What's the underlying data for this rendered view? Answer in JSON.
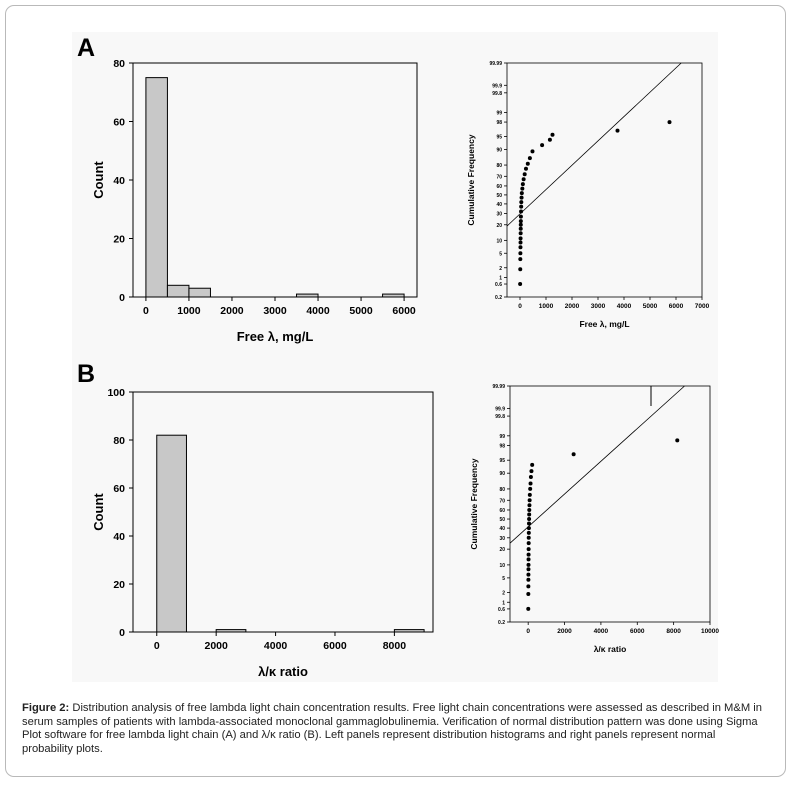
{
  "figure": {
    "panel_a_letter": "A",
    "panel_b_letter": "B",
    "caption_label": "Figure 2:",
    "caption_text": " Distribution analysis of free lambda light chain concentration results. Free light chain concentrations were assessed as described in M&M in serum samples of patients with lambda-associated monoclonal gammaglobulinemia. Verification of normal distribution pattern was done using Sigma Plot software for free lambda light chain (A) and λ/κ ratio (B). Left panels represent distribution histograms and right panels represent normal probability plots."
  },
  "colors": {
    "bar_fill": "#c8c8c8",
    "bar_stroke": "#000000",
    "point": "#000000",
    "background": "#f8f8f8"
  },
  "chart_data": [
    {
      "id": "A-hist",
      "type": "bar",
      "xlabel": "Free λ, mg/L",
      "ylabel": "Count",
      "xlim": [
        -300,
        6300
      ],
      "ylim": [
        0,
        80
      ],
      "xticks": [
        "0",
        "1000",
        "2000",
        "3000",
        "4000",
        "5000",
        "6000"
      ],
      "xtick_values": [
        0,
        1000,
        2000,
        3000,
        4000,
        5000,
        6000
      ],
      "yticks": [
        "0",
        "20",
        "40",
        "60",
        "80"
      ],
      "ytick_values": [
        0,
        20,
        40,
        60,
        80
      ],
      "bins": [
        {
          "start": 0,
          "end": 500,
          "value": 75
        },
        {
          "start": 500,
          "end": 1000,
          "value": 4
        },
        {
          "start": 1000,
          "end": 1500,
          "value": 3
        },
        {
          "start": 3500,
          "end": 4000,
          "value": 1
        },
        {
          "start": 5500,
          "end": 6000,
          "value": 1
        }
      ]
    },
    {
      "id": "A-prob",
      "type": "scatter",
      "xlabel": "Free λ, mg/L",
      "ylabel": "Cumulative Frequency",
      "xlim": [
        -500,
        7000
      ],
      "xticks": [
        "0",
        "1000",
        "2000",
        "3000",
        "4000",
        "5000",
        "6000",
        "7000"
      ],
      "xtick_values": [
        0,
        1000,
        2000,
        3000,
        4000,
        5000,
        6000,
        7000
      ],
      "yticks": [
        "0.2",
        "0.6",
        "1",
        "2",
        "5",
        "10",
        "20",
        "30",
        "40",
        "50",
        "60",
        "70",
        "80",
        "90",
        "95",
        "98",
        "99",
        "99.8",
        "99.9",
        "99.99"
      ],
      "ytick_values": [
        0.2,
        0.6,
        1,
        2,
        5,
        10,
        20,
        30,
        40,
        50,
        60,
        70,
        80,
        90,
        95,
        98,
        99,
        99.8,
        99.9,
        99.99
      ],
      "ylim": [
        0.2,
        99.99
      ],
      "fit_line": {
        "x": [
          -500,
          6200
        ],
        "y": [
          19,
          99.99
        ]
      },
      "points": [
        {
          "x": 5,
          "y": 0.6
        },
        {
          "x": 10,
          "y": 1.8
        },
        {
          "x": 12,
          "y": 3.5
        },
        {
          "x": 15,
          "y": 5
        },
        {
          "x": 18,
          "y": 7
        },
        {
          "x": 20,
          "y": 9
        },
        {
          "x": 22,
          "y": 11
        },
        {
          "x": 25,
          "y": 14
        },
        {
          "x": 28,
          "y": 17
        },
        {
          "x": 30,
          "y": 20
        },
        {
          "x": 32,
          "y": 23
        },
        {
          "x": 35,
          "y": 27
        },
        {
          "x": 40,
          "y": 32
        },
        {
          "x": 45,
          "y": 37
        },
        {
          "x": 50,
          "y": 42
        },
        {
          "x": 60,
          "y": 47
        },
        {
          "x": 70,
          "y": 52
        },
        {
          "x": 90,
          "y": 57
        },
        {
          "x": 110,
          "y": 62
        },
        {
          "x": 140,
          "y": 67
        },
        {
          "x": 180,
          "y": 72
        },
        {
          "x": 230,
          "y": 77
        },
        {
          "x": 300,
          "y": 81
        },
        {
          "x": 380,
          "y": 85
        },
        {
          "x": 480,
          "y": 89
        },
        {
          "x": 850,
          "y": 92
        },
        {
          "x": 1150,
          "y": 94
        },
        {
          "x": 1250,
          "y": 95.5
        },
        {
          "x": 3750,
          "y": 96.5
        },
        {
          "x": 5750,
          "y": 98
        }
      ]
    },
    {
      "id": "B-hist",
      "type": "bar",
      "xlabel": "λ/κ ratio",
      "ylabel": "Count",
      "xlim": [
        -800,
        9300
      ],
      "ylim": [
        0,
        100
      ],
      "xticks": [
        "0",
        "2000",
        "4000",
        "6000",
        "8000"
      ],
      "xtick_values": [
        0,
        2000,
        4000,
        6000,
        8000
      ],
      "yticks": [
        "0",
        "20",
        "40",
        "60",
        "80",
        "100"
      ],
      "ytick_values": [
        0,
        20,
        40,
        60,
        80,
        100
      ],
      "bins": [
        {
          "start": 0,
          "end": 1000,
          "value": 82
        },
        {
          "start": 2000,
          "end": 3000,
          "value": 1
        },
        {
          "start": 8000,
          "end": 9000,
          "value": 1
        }
      ]
    },
    {
      "id": "B-prob",
      "type": "scatter",
      "xlabel": "λ/κ ratio",
      "ylabel": "Cumulative Frequency",
      "xlim": [
        -1000,
        10000
      ],
      "xticks": [
        "0",
        "2000",
        "4000",
        "6000",
        "8000",
        "10000"
      ],
      "xtick_values": [
        0,
        2000,
        4000,
        6000,
        8000,
        10000
      ],
      "yticks": [
        "0.2",
        "0.6",
        "1",
        "2",
        "5",
        "10",
        "20",
        "30",
        "40",
        "50",
        "60",
        "70",
        "80",
        "90",
        "95",
        "98",
        "99",
        "99.8",
        "99.9",
        "99.99"
      ],
      "ytick_values": [
        0.2,
        0.6,
        1,
        2,
        5,
        10,
        20,
        30,
        40,
        50,
        60,
        70,
        80,
        90,
        95,
        98,
        99,
        99.8,
        99.9,
        99.99
      ],
      "ylim": [
        0.2,
        99.99
      ],
      "fit_line": {
        "x": [
          -1000,
          8600
        ],
        "y": [
          25,
          99.99
        ]
      },
      "points": [
        {
          "x": 5,
          "y": 0.6
        },
        {
          "x": 8,
          "y": 1.8
        },
        {
          "x": 10,
          "y": 3
        },
        {
          "x": 12,
          "y": 4.5
        },
        {
          "x": 14,
          "y": 6
        },
        {
          "x": 16,
          "y": 8
        },
        {
          "x": 18,
          "y": 10
        },
        {
          "x": 20,
          "y": 13
        },
        {
          "x": 22,
          "y": 16
        },
        {
          "x": 25,
          "y": 20
        },
        {
          "x": 28,
          "y": 25
        },
        {
          "x": 30,
          "y": 30
        },
        {
          "x": 35,
          "y": 35
        },
        {
          "x": 40,
          "y": 40
        },
        {
          "x": 45,
          "y": 45
        },
        {
          "x": 50,
          "y": 50
        },
        {
          "x": 55,
          "y": 55
        },
        {
          "x": 60,
          "y": 60
        },
        {
          "x": 70,
          "y": 65
        },
        {
          "x": 80,
          "y": 70
        },
        {
          "x": 90,
          "y": 75
        },
        {
          "x": 110,
          "y": 80
        },
        {
          "x": 130,
          "y": 84
        },
        {
          "x": 150,
          "y": 88
        },
        {
          "x": 180,
          "y": 91
        },
        {
          "x": 220,
          "y": 93.5
        },
        {
          "x": 2500,
          "y": 96.5
        },
        {
          "x": 8200,
          "y": 98.6
        }
      ]
    }
  ]
}
